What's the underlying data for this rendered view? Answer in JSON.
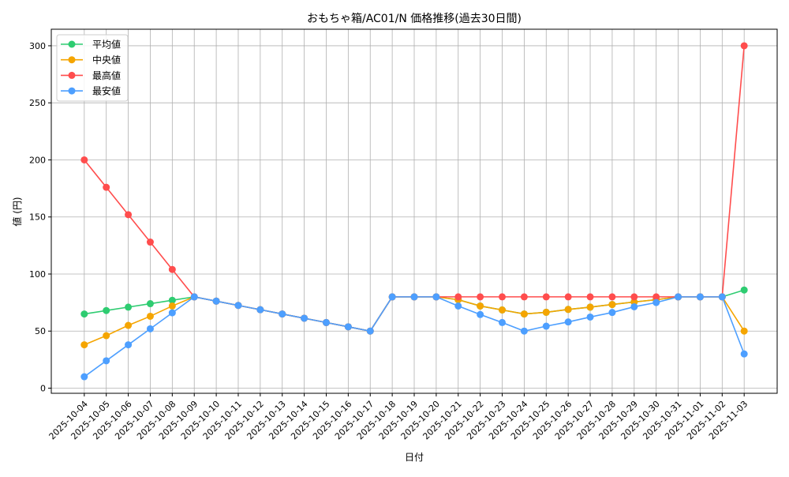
{
  "chart_data": {
    "type": "line",
    "title": "おもちゃ箱/AC01/N 価格推移(過去30日間)",
    "xlabel": "日付",
    "ylabel": "値 (円)",
    "ylim": [
      -4.5,
      314.5
    ],
    "yticks": [
      0,
      50,
      100,
      150,
      200,
      250,
      300
    ],
    "grid": true,
    "legend_position": "top-left",
    "categories": [
      "2025-10-04",
      "2025-10-05",
      "2025-10-06",
      "2025-10-07",
      "2025-10-08",
      "2025-10-09",
      "2025-10-10",
      "2025-10-11",
      "2025-10-12",
      "2025-10-13",
      "2025-10-14",
      "2025-10-15",
      "2025-10-16",
      "2025-10-17",
      "2025-10-18",
      "2025-10-19",
      "2025-10-20",
      "2025-10-21",
      "2025-10-22",
      "2025-10-23",
      "2025-10-24",
      "2025-10-25",
      "2025-10-26",
      "2025-10-27",
      "2025-10-28",
      "2025-10-29",
      "2025-10-30",
      "2025-10-31",
      "2025-11-01",
      "2025-11-02",
      "2025-11-03"
    ],
    "series": [
      {
        "name": "平均値",
        "color": "#2ecc71",
        "values": [
          65,
          68,
          71,
          74,
          77,
          80,
          76.25,
          72.5,
          68.75,
          65,
          61.25,
          57.5,
          53.75,
          50,
          80,
          80,
          80,
          77.5,
          72,
          68.5,
          65,
          66.5,
          69,
          71,
          73.3,
          75.5,
          77.5,
          80,
          80,
          80,
          86
        ]
      },
      {
        "name": "中央値",
        "color": "#f5a500",
        "values": [
          38,
          46,
          55,
          63,
          72,
          80,
          76.25,
          72.5,
          68.75,
          65,
          61.25,
          57.5,
          53.75,
          50,
          80,
          80,
          80,
          77.5,
          72,
          68.5,
          65,
          66.5,
          69,
          71,
          73.3,
          75.5,
          77.5,
          80,
          80,
          80,
          50
        ]
      },
      {
        "name": "最高値",
        "color": "#ff4d4d",
        "values": [
          200,
          176,
          152,
          128,
          104,
          80,
          76.25,
          72.5,
          68.75,
          65,
          61.25,
          57.5,
          53.75,
          50,
          80,
          80,
          80,
          80,
          80,
          80,
          80,
          80,
          80,
          80,
          80,
          80,
          80,
          80,
          80,
          80,
          300
        ]
      },
      {
        "name": "最安値",
        "color": "#4d9fff",
        "values": [
          10,
          24,
          38,
          52,
          66,
          80,
          76.25,
          72.5,
          68.75,
          65,
          61.25,
          57.5,
          53.75,
          50,
          80,
          80,
          80,
          72,
          64.5,
          57.5,
          50,
          54.3,
          58,
          62.3,
          66.3,
          71.3,
          75,
          80,
          80,
          80,
          30
        ]
      }
    ]
  }
}
